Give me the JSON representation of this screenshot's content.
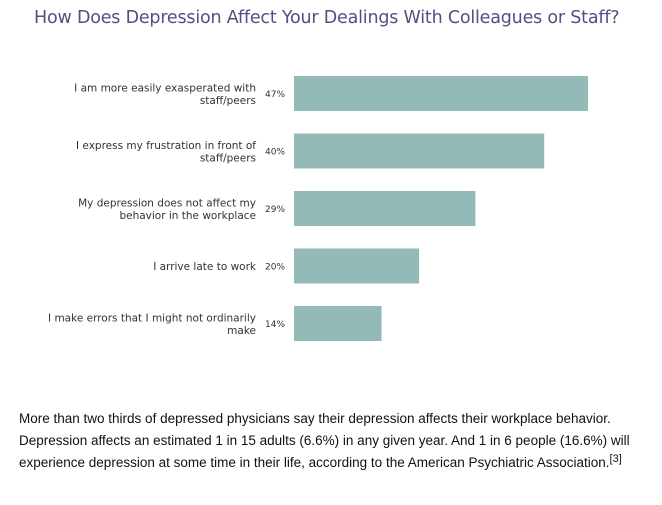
{
  "chart_data": {
    "type": "bar",
    "orientation": "horizontal",
    "title": "How Does Depression Affect Your Dealings With Colleagues or Staff?",
    "categories": [
      [
        "I am more easily exasperated with",
        "staff/peers"
      ],
      [
        "I express my frustration in front of",
        "staff/peers"
      ],
      [
        "My depression does not affect my",
        "behavior in the workplace"
      ],
      [
        "I arrive late to work"
      ],
      [
        "I make errors that I might not ordinarily",
        "make"
      ]
    ],
    "values": [
      47,
      40,
      29,
      20,
      14
    ],
    "value_labels": [
      "47%",
      "40%",
      "29%",
      "20%",
      "14%"
    ],
    "unit": "%",
    "xlim": [
      0,
      47
    ],
    "bar_color": "#94bab7",
    "grid": false,
    "legend": "none"
  },
  "caption": {
    "text": "More than two thirds of depressed physicians say their depression affects their workplace behavior. Depression affects an estimated 1 in 15 adults (6.6%) in any given year. And 1 in 6 people (16.6%) will experience depression at some time in their life, according to the American Psychiatric Association.",
    "reference": "[3]"
  }
}
